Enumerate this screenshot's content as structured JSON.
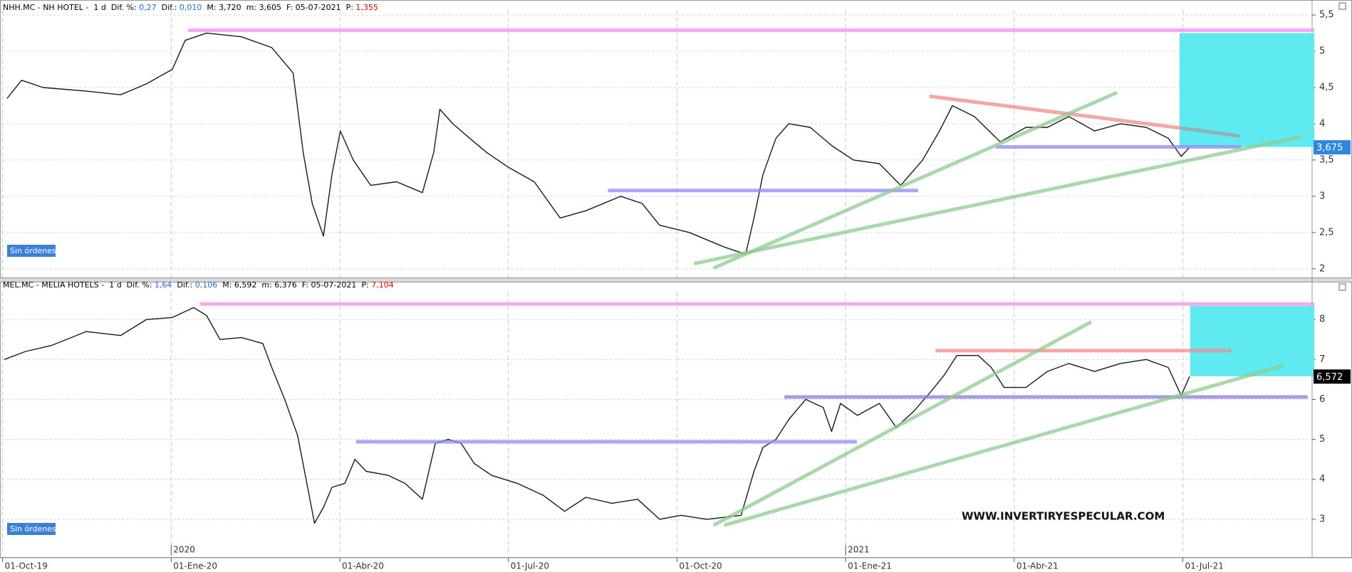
{
  "chart_data": [
    {
      "type": "line",
      "header": [
        {
          "text": "NHH.MC - NH HOTEL -  1 d  Dif. %: ",
          "color": "#000000"
        },
        {
          "text": "0,27",
          "color": "#1e6fd0"
        },
        {
          "text": "  Dif.: ",
          "color": "#000000"
        },
        {
          "text": "0,010",
          "color": "#1e6fd0"
        },
        {
          "text": "  M: 3,720  m: 3,605  F: 05-07-2021  P: ",
          "color": "#000000"
        },
        {
          "text": "1,355",
          "color": "#d00000"
        }
      ],
      "badge": "Sin órdenes",
      "color": "#1a1a1a",
      "x": [
        0.08,
        0.34,
        0.72,
        1.49,
        2.1,
        2.56,
        3.02,
        3.25,
        3.63,
        4.25,
        4.79,
        5.17,
        5.35,
        5.51,
        5.71,
        5.86,
        6.01,
        6.24,
        6.55,
        7.01,
        7.47,
        7.67,
        7.78,
        8.01,
        8.31,
        8.62,
        9.0,
        9.46,
        9.92,
        10.38,
        11.0,
        11.38,
        11.69,
        12.22,
        12.84,
        13.22,
        13.37,
        13.53,
        13.76,
        13.99,
        14.37,
        14.75,
        15.14,
        15.6,
        15.98,
        16.37,
        16.67,
        16.9,
        17.29,
        17.75,
        18.21,
        18.59,
        18.97,
        19.43,
        19.89,
        20.35,
        20.74,
        20.97,
        21.12
      ],
      "values": [
        4.35,
        4.6,
        4.5,
        4.45,
        4.4,
        4.55,
        4.75,
        5.15,
        5.25,
        5.2,
        5.05,
        4.7,
        3.6,
        2.9,
        2.45,
        3.3,
        3.9,
        3.5,
        3.15,
        3.2,
        3.05,
        3.6,
        4.2,
        4.0,
        3.8,
        3.6,
        3.4,
        3.2,
        2.7,
        2.8,
        3.0,
        2.9,
        2.6,
        2.5,
        2.3,
        2.2,
        2.7,
        3.3,
        3.8,
        4.0,
        3.95,
        3.7,
        3.5,
        3.45,
        3.15,
        3.5,
        3.9,
        4.25,
        4.1,
        3.75,
        3.95,
        3.95,
        4.1,
        3.9,
        4.0,
        3.95,
        3.8,
        3.55,
        3.675
      ],
      "xlim": [
        0,
        23.3
      ],
      "ylim": [
        1.88,
        5.54
      ],
      "yticks": [
        2,
        {
          "value": 2.5,
          "label": "2,5"
        },
        3,
        {
          "value": 3.5,
          "label": "3,5"
        },
        4,
        {
          "value": 4.5,
          "label": "4,5"
        },
        5,
        {
          "value": 5.5,
          "label": "5,5"
        }
      ],
      "grid": true,
      "last_price": {
        "value": 3.675,
        "label": "3,675",
        "color": "#2e86de"
      },
      "zones": [
        {
          "x": [
            20.94,
            23.34
          ],
          "y": [
            3.68,
            5.25
          ],
          "color": "#5eeaf0"
        }
      ],
      "trendlines": [
        {
          "x": [
            3.3,
            23.34
          ],
          "y": [
            5.29,
            5.29
          ],
          "color": "#f48cf4"
        },
        {
          "x": [
            16.49,
            20.97
          ],
          "y": [
            4.38,
            3.94
          ],
          "color": "#f08a8a"
        },
        {
          "x": [
            20.97,
            22.01
          ],
          "y": [
            3.94,
            3.83
          ],
          "color": "#a0a0a0"
        },
        {
          "x": [
            17.67,
            22.04
          ],
          "y": [
            3.68,
            3.68
          ],
          "color": "#8c8cf0"
        },
        {
          "x": [
            10.77,
            16.29
          ],
          "y": [
            3.08,
            3.08
          ],
          "color": "#8c8cf0"
        },
        {
          "x": [
            12.65,
            19.83
          ],
          "y": [
            2.01,
            4.43
          ],
          "color": "#8fcc8f"
        },
        {
          "x": [
            12.3,
            23.11
          ],
          "y": [
            2.07,
            3.82
          ],
          "color": "#8fcc8f"
        }
      ]
    },
    {
      "type": "line",
      "header": [
        {
          "text": "MEL.MC - MELIA HOTELS -  1 d  Dif. %: ",
          "color": "#000000"
        },
        {
          "text": "1,64",
          "color": "#1e6fd0"
        },
        {
          "text": "  Dif.: ",
          "color": "#000000"
        },
        {
          "text": "0,106",
          "color": "#1e6fd0"
        },
        {
          "text": "  M: 6,592  m: 6,376  F: 05-07-2021  P: ",
          "color": "#000000"
        },
        {
          "text": "7,104",
          "color": "#d00000"
        }
      ],
      "badge": "Sin órdenes",
      "watermark": "WWW.INVERTIRYESPECULAR.COM",
      "color": "#1a1a1a",
      "x": [
        0.03,
        0.41,
        0.87,
        1.49,
        2.1,
        2.56,
        3.02,
        3.4,
        3.63,
        3.87,
        4.25,
        4.63,
        4.79,
        5.02,
        5.25,
        5.4,
        5.55,
        5.71,
        5.86,
        6.09,
        6.27,
        6.47,
        6.86,
        7.16,
        7.47,
        7.7,
        7.93,
        8.16,
        8.39,
        8.7,
        9.16,
        9.62,
        10.0,
        10.38,
        10.84,
        11.3,
        11.69,
        12.07,
        12.53,
        13.14,
        13.37,
        13.53,
        13.76,
        13.99,
        14.29,
        14.6,
        14.75,
        14.91,
        15.21,
        15.6,
        15.9,
        16.21,
        16.52,
        16.75,
        16.98,
        17.36,
        17.59,
        17.82,
        18.21,
        18.59,
        18.97,
        19.43,
        19.89,
        20.35,
        20.74,
        20.97,
        21.12
      ],
      "values": [
        7.0,
        7.2,
        7.35,
        7.7,
        7.6,
        8.0,
        8.05,
        8.3,
        8.1,
        7.5,
        7.55,
        7.4,
        6.8,
        6.0,
        5.1,
        4.0,
        2.9,
        3.3,
        3.8,
        3.9,
        4.5,
        4.2,
        4.1,
        3.9,
        3.5,
        4.9,
        5.0,
        4.9,
        4.4,
        4.1,
        3.9,
        3.6,
        3.2,
        3.55,
        3.4,
        3.5,
        3.0,
        3.1,
        3.0,
        3.1,
        4.2,
        4.8,
        5.0,
        5.5,
        6.0,
        5.8,
        5.2,
        5.9,
        5.6,
        5.9,
        5.3,
        5.7,
        6.2,
        6.6,
        7.1,
        7.1,
        6.8,
        6.3,
        6.3,
        6.7,
        6.9,
        6.7,
        6.9,
        7.0,
        6.8,
        6.1,
        6.572
      ],
      "xlim": [
        0,
        23.3
      ],
      "ylim": [
        2.09,
        8.75
      ],
      "yticks": [
        3,
        4,
        5,
        6,
        7,
        8
      ],
      "grid": true,
      "last_price": {
        "value": 6.572,
        "label": "6,572",
        "color": "#000000"
      },
      "zones": [
        {
          "x": [
            21.13,
            23.34
          ],
          "y": [
            6.58,
            8.34
          ],
          "color": "#5eeaf0"
        }
      ],
      "trendlines": [
        {
          "x": [
            3.51,
            23.34
          ],
          "y": [
            8.39,
            8.39
          ],
          "color": "#f48cf4"
        },
        {
          "x": [
            16.6,
            21.86
          ],
          "y": [
            7.22,
            7.22
          ],
          "color": "#f08a8a"
        },
        {
          "x": [
            13.91,
            23.22
          ],
          "y": [
            6.06,
            6.06
          ],
          "color": "#8c7ad8"
        },
        {
          "x": [
            6.29,
            15.2
          ],
          "y": [
            4.94,
            4.94
          ],
          "color": "#8c8cf0"
        },
        {
          "x": [
            12.65,
            19.37
          ],
          "y": [
            2.85,
            7.94
          ],
          "color": "#8fcc8f"
        },
        {
          "x": [
            12.84,
            22.78
          ],
          "y": [
            2.85,
            6.84
          ],
          "color": "#8fcc8f"
        }
      ],
      "xticks": [
        {
          "value": 0,
          "label": "01-Oct-19"
        },
        {
          "value": 3,
          "label": "01-Ene-20"
        },
        {
          "value": 6,
          "label": "01-Abr-20"
        },
        {
          "value": 9,
          "label": "01-Jul-20"
        },
        {
          "value": 12,
          "label": "01-Oct-20"
        },
        {
          "value": 15,
          "label": "01-Ene-21"
        },
        {
          "value": 18,
          "label": "01-Abr-21"
        },
        {
          "value": 21,
          "label": "01-Jul-21"
        }
      ],
      "year_labels": [
        {
          "value": 3,
          "label": "2020"
        },
        {
          "value": 15,
          "label": "2021"
        }
      ]
    }
  ]
}
